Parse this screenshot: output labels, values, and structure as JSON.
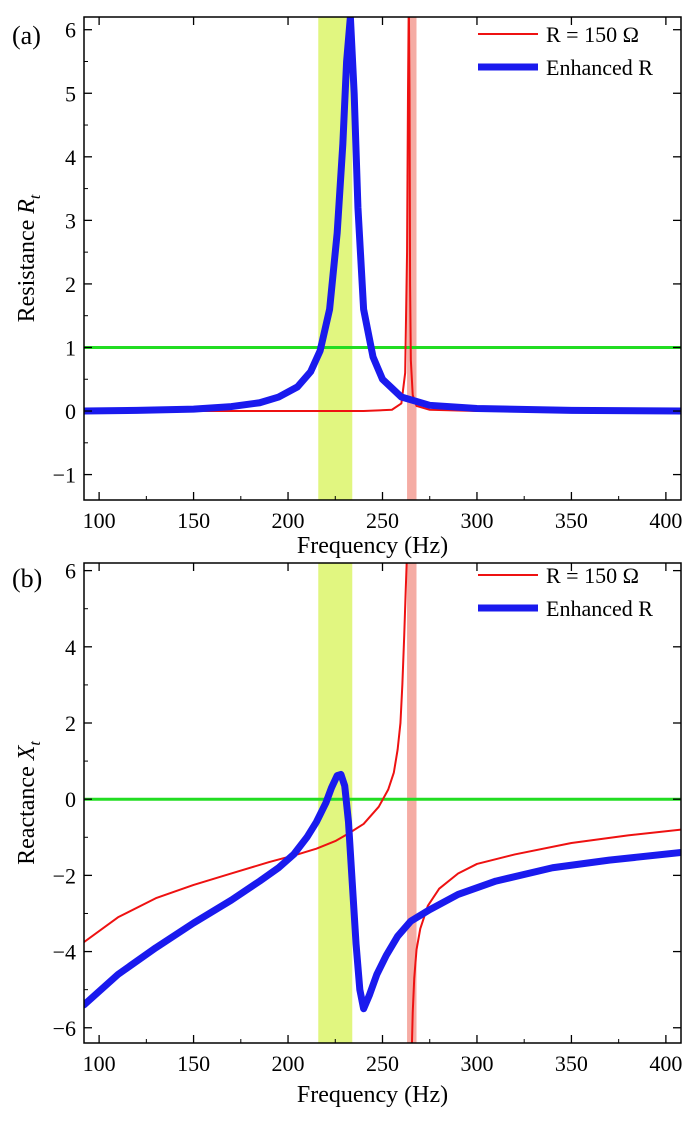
{
  "chart_data": [
    {
      "panel": "(a)",
      "type": "line",
      "xlabel": "Frequency (Hz)",
      "ylabel_prefix": "Resistance ",
      "ylabel_symbol": "R",
      "ylabel_sub": "t",
      "xlim": [
        92,
        408
      ],
      "ylim": [
        -1.4,
        6.2
      ],
      "xticks": [
        100,
        150,
        200,
        250,
        300,
        350,
        400
      ],
      "yticks": [
        -1,
        0,
        1,
        2,
        3,
        4,
        5,
        6
      ],
      "xtick_labels": [
        "100",
        "150",
        "200",
        "250",
        "300",
        "350",
        "400"
      ],
      "ytick_labels": [
        "−1",
        "0",
        "1",
        "2",
        "3",
        "4",
        "5",
        "6"
      ],
      "reference_line": {
        "y": 1,
        "color": "#22dd22"
      },
      "bands": [
        {
          "x_range": [
            216,
            234
          ],
          "color": "#dcf56a"
        },
        {
          "x_range": [
            263,
            268
          ],
          "color": "#f4a39a"
        }
      ],
      "legend": {
        "position": "top-right",
        "entries": [
          "R = 150 Ω",
          "Enhanced R"
        ]
      },
      "series": [
        {
          "name": "R = 150 Ω",
          "color": "#ee1111",
          "x": [
            92,
            150,
            200,
            240,
            255,
            260,
            262,
            263,
            263.5,
            264,
            264.3,
            264.6,
            265,
            266,
            268,
            275,
            300,
            408
          ],
          "y": [
            0,
            0,
            0,
            0,
            0.02,
            0.12,
            0.6,
            2.5,
            5.0,
            6.2,
            5.0,
            2.0,
            0.8,
            0.25,
            0.08,
            0.02,
            0,
            0
          ]
        },
        {
          "name": "Enhanced R",
          "color": "#1a1aee",
          "x": [
            92,
            120,
            150,
            170,
            185,
            195,
            205,
            212,
            217,
            222,
            226,
            229,
            231,
            233,
            235,
            237,
            240,
            245,
            250,
            260,
            275,
            300,
            350,
            408
          ],
          "y": [
            0,
            0.01,
            0.03,
            0.07,
            0.13,
            0.22,
            0.38,
            0.62,
            0.95,
            1.6,
            2.8,
            4.2,
            5.5,
            6.2,
            5.0,
            3.2,
            1.6,
            0.85,
            0.5,
            0.22,
            0.09,
            0.04,
            0.01,
            0
          ]
        }
      ]
    },
    {
      "panel": "(b)",
      "type": "line",
      "xlabel": "Frequency (Hz)",
      "ylabel_prefix": "Reactance ",
      "ylabel_symbol": "X",
      "ylabel_sub": "t",
      "xlim": [
        92,
        408
      ],
      "ylim": [
        -6.4,
        6.2
      ],
      "xticks": [
        100,
        150,
        200,
        250,
        300,
        350,
        400
      ],
      "yticks": [
        -6,
        -4,
        -2,
        0,
        2,
        4,
        6
      ],
      "xtick_labels": [
        "100",
        "150",
        "200",
        "250",
        "300",
        "350",
        "400"
      ],
      "ytick_labels": [
        "−6",
        "−4",
        "−2",
        "0",
        "2",
        "4",
        "6"
      ],
      "reference_line": {
        "y": 0,
        "color": "#22dd22"
      },
      "bands": [
        {
          "x_range": [
            216,
            234
          ],
          "color": "#dcf56a"
        },
        {
          "x_range": [
            263,
            268
          ],
          "color": "#f4a39a"
        }
      ],
      "legend": {
        "position": "top-right",
        "entries": [
          "R = 150 Ω",
          "Enhanced R"
        ]
      },
      "series": [
        {
          "name": "R = 150 Ω",
          "color": "#ee1111",
          "segments": [
            {
              "x": [
                92,
                110,
                130,
                150,
                170,
                190,
                205,
                215,
                225,
                232,
                240,
                248,
                253,
                256,
                258,
                259.5,
                260.5,
                261.5,
                262.3,
                262.8
              ],
              "y": [
                -3.75,
                -3.1,
                -2.6,
                -2.25,
                -1.95,
                -1.65,
                -1.45,
                -1.3,
                -1.1,
                -0.9,
                -0.65,
                -0.2,
                0.25,
                0.7,
                1.3,
                2.0,
                3.0,
                4.3,
                5.5,
                6.2
              ]
            },
            {
              "x": [
                265.6,
                266,
                266.8,
                268,
                270,
                274,
                280,
                290,
                300,
                320,
                350,
                380,
                408
              ],
              "y": [
                -6.4,
                -5.6,
                -4.7,
                -3.95,
                -3.4,
                -2.8,
                -2.35,
                -1.95,
                -1.7,
                -1.45,
                -1.15,
                -0.95,
                -0.8
              ]
            }
          ]
        },
        {
          "name": "Enhanced R",
          "color": "#1a1aee",
          "x": [
            92,
            110,
            130,
            150,
            170,
            185,
            195,
            203,
            210,
            215,
            220,
            223,
            226,
            228,
            230,
            232,
            234,
            236,
            238,
            240,
            243,
            247,
            252,
            258,
            265,
            275,
            290,
            310,
            340,
            370,
            408
          ],
          "y": [
            -5.4,
            -4.6,
            -3.9,
            -3.25,
            -2.65,
            -2.15,
            -1.8,
            -1.45,
            -1.0,
            -0.6,
            -0.1,
            0.3,
            0.62,
            0.65,
            0.35,
            -0.6,
            -2.2,
            -3.8,
            -5.0,
            -5.5,
            -5.15,
            -4.6,
            -4.1,
            -3.6,
            -3.2,
            -2.9,
            -2.5,
            -2.15,
            -1.8,
            -1.6,
            -1.4
          ]
        }
      ]
    }
  ]
}
